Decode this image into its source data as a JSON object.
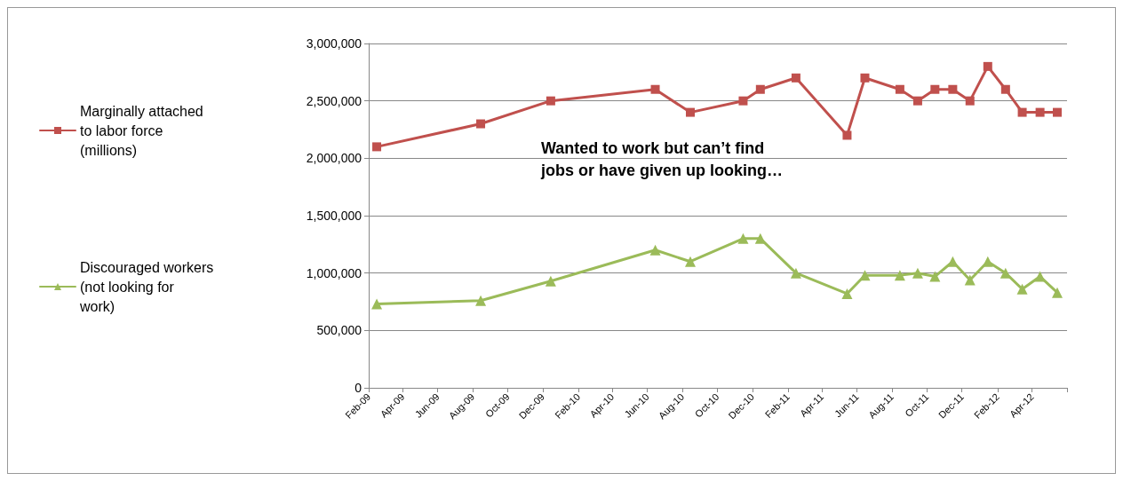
{
  "chart_data": {
    "type": "line",
    "x": [
      "2009-02-15",
      "2009-08-15",
      "2009-12-15",
      "2010-06-15",
      "2010-08-15",
      "2010-11-15",
      "2010-12-15",
      "2011-02-15",
      "2011-05-15",
      "2011-06-15",
      "2011-08-15",
      "2011-09-15",
      "2011-10-15",
      "2011-11-15",
      "2011-12-15",
      "2012-01-15",
      "2012-02-15",
      "2012-03-15",
      "2012-04-15",
      "2012-05-15"
    ],
    "series": [
      {
        "name": "Marginally attached to labor force (millions)",
        "color": "#c0504d",
        "marker": "square",
        "values": [
          2100000,
          2300000,
          2500000,
          2600000,
          2400000,
          2500000,
          2600000,
          2700000,
          2200000,
          2700000,
          2600000,
          2500000,
          2600000,
          2600000,
          2500000,
          2800000,
          2600000,
          2400000,
          2400000,
          2400000
        ]
      },
      {
        "name": "Discouraged workers (not looking for work)",
        "color": "#9bbb59",
        "marker": "triangle",
        "values": [
          730000,
          760000,
          930000,
          1200000,
          1100000,
          1300000,
          1300000,
          1000000,
          820000,
          980000,
          980000,
          1000000,
          970000,
          1100000,
          940000,
          1100000,
          1000000,
          860000,
          970000,
          830000
        ]
      }
    ],
    "xlim": [
      "2009-02-01",
      "2012-06-01"
    ],
    "xticks": [
      {
        "value": "2009-02-01",
        "label": "Feb-09"
      },
      {
        "value": "2009-04-01",
        "label": "Apr-09"
      },
      {
        "value": "2009-06-01",
        "label": "Jun-09"
      },
      {
        "value": "2009-08-01",
        "label": "Aug-09"
      },
      {
        "value": "2009-10-01",
        "label": "Oct-09"
      },
      {
        "value": "2009-12-01",
        "label": "Dec-09"
      },
      {
        "value": "2010-02-01",
        "label": "Feb-10"
      },
      {
        "value": "2010-04-01",
        "label": "Apr-10"
      },
      {
        "value": "2010-06-01",
        "label": "Jun-10"
      },
      {
        "value": "2010-08-01",
        "label": "Aug-10"
      },
      {
        "value": "2010-10-01",
        "label": "Oct-10"
      },
      {
        "value": "2010-12-01",
        "label": "Dec-10"
      },
      {
        "value": "2011-02-01",
        "label": "Feb-11"
      },
      {
        "value": "2011-04-01",
        "label": "Apr-11"
      },
      {
        "value": "2011-06-01",
        "label": "Jun-11"
      },
      {
        "value": "2011-08-01",
        "label": "Aug-11"
      },
      {
        "value": "2011-10-01",
        "label": "Oct-11"
      },
      {
        "value": "2011-12-01",
        "label": "Dec-11"
      },
      {
        "value": "2012-02-01",
        "label": "Feb-12"
      },
      {
        "value": "2012-04-01",
        "label": "Apr-12"
      },
      {
        "value": "2012-06-01",
        "label": null
      }
    ],
    "ylim": [
      0,
      3000000
    ],
    "yticks": [
      {
        "value": 0,
        "label": "0"
      },
      {
        "value": 500000,
        "label": "500,000"
      },
      {
        "value": 1000000,
        "label": "1,000,000"
      },
      {
        "value": 1500000,
        "label": "1,500,000"
      },
      {
        "value": 2000000,
        "label": "2,000,000"
      },
      {
        "value": 2500000,
        "label": "2,500,000"
      },
      {
        "value": 3000000,
        "label": "3,000,000"
      }
    ],
    "grid": "y",
    "legend": "left",
    "line_style": "solid",
    "annotations": [
      "Wanted to work but can’t find jobs or have given up looking…"
    ]
  }
}
